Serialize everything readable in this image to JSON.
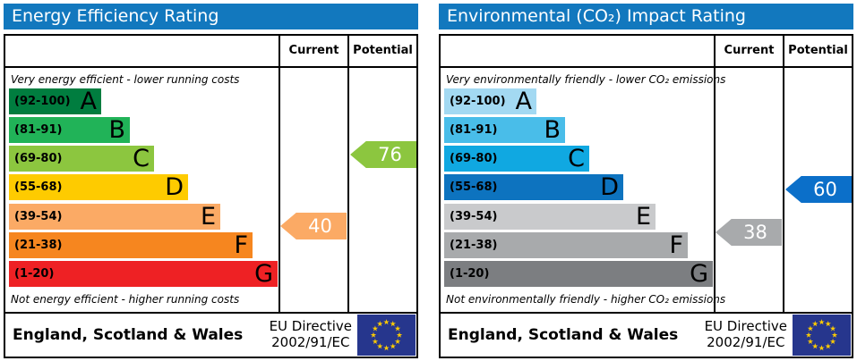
{
  "header_bg": "#1278be",
  "eu_flag": {
    "background": "#26368d",
    "star_color": "#ffcc00"
  },
  "panels": [
    {
      "id": "panel-energy",
      "title": "Energy Efficiency Rating",
      "columns": {
        "current": "Current",
        "potential": "Potential"
      },
      "top_note": "Very energy efficient - lower running costs",
      "bottom_note": "Not energy efficient - higher running costs",
      "bands": [
        {
          "letter": "A",
          "range": "(92-100)",
          "min": 92,
          "max": 100,
          "color": "#007d3f"
        },
        {
          "letter": "B",
          "range": "(81-91)",
          "min": 81,
          "max": 91,
          "color": "#21b358"
        },
        {
          "letter": "C",
          "range": "(69-80)",
          "min": 69,
          "max": 80,
          "color": "#8cc63f"
        },
        {
          "letter": "D",
          "range": "(55-68)",
          "min": 55,
          "max": 68,
          "color": "#fecb00"
        },
        {
          "letter": "E",
          "range": "(39-54)",
          "min": 39,
          "max": 54,
          "color": "#fbaa65"
        },
        {
          "letter": "F",
          "range": "(21-38)",
          "min": 21,
          "max": 38,
          "color": "#f6861f"
        },
        {
          "letter": "G",
          "range": "(1-20)",
          "min": 1,
          "max": 20,
          "color": "#ee2124"
        }
      ],
      "current": {
        "value": 40,
        "color": "#fbaa65"
      },
      "potential": {
        "value": 76,
        "color": "#8cc63f"
      },
      "footer": {
        "region": "England, Scotland & Wales",
        "directive_line1": "EU Directive",
        "directive_line2": "2002/91/EC"
      }
    },
    {
      "id": "panel-env",
      "title": "Environmental (CO₂) Impact Rating",
      "columns": {
        "current": "Current",
        "potential": "Potential"
      },
      "top_note": "Very environmentally friendly - lower CO₂ emissions",
      "bottom_note": "Not environmentally friendly - higher CO₂ emissions",
      "bands": [
        {
          "letter": "A",
          "range": "(92-100)",
          "min": 92,
          "max": 100,
          "color": "#a3d9f2"
        },
        {
          "letter": "B",
          "range": "(81-91)",
          "min": 81,
          "max": 91,
          "color": "#49bde9"
        },
        {
          "letter": "C",
          "range": "(69-80)",
          "min": 69,
          "max": 80,
          "color": "#10a8e1"
        },
        {
          "letter": "D",
          "range": "(55-68)",
          "min": 55,
          "max": 68,
          "color": "#0d73bf"
        },
        {
          "letter": "E",
          "range": "(39-54)",
          "min": 39,
          "max": 54,
          "color": "#c9cacc"
        },
        {
          "letter": "F",
          "range": "(21-38)",
          "min": 21,
          "max": 38,
          "color": "#a8aaac"
        },
        {
          "letter": "G",
          "range": "(1-20)",
          "min": 1,
          "max": 20,
          "color": "#7c7e81"
        }
      ],
      "current": {
        "value": 38,
        "color": "#a8aaac"
      },
      "potential": {
        "value": 60,
        "color": "#0b6fc9"
      },
      "footer": {
        "region": "England, Scotland & Wales",
        "directive_line1": "EU Directive",
        "directive_line2": "2002/91/EC"
      }
    }
  ],
  "chart_data": [
    {
      "type": "bar",
      "title": "Energy Efficiency Rating",
      "categories": [
        "A (92-100)",
        "B (81-91)",
        "C (69-80)",
        "D (55-68)",
        "E (39-54)",
        "F (21-38)",
        "G (1-20)"
      ],
      "scale_range": [
        1,
        100
      ],
      "current": 40,
      "current_band": "E",
      "potential": 76,
      "potential_band": "C",
      "top_note": "Very energy efficient - lower running costs",
      "bottom_note": "Not energy efficient - higher running costs",
      "footer": "England, Scotland & Wales — EU Directive 2002/91/EC"
    },
    {
      "type": "bar",
      "title": "Environmental (CO₂) Impact Rating",
      "categories": [
        "A (92-100)",
        "B (81-91)",
        "C (69-80)",
        "D (55-68)",
        "E (39-54)",
        "F (21-38)",
        "G (1-20)"
      ],
      "scale_range": [
        1,
        100
      ],
      "current": 38,
      "current_band": "F",
      "potential": 60,
      "potential_band": "D",
      "top_note": "Very environmentally friendly - lower CO₂ emissions",
      "bottom_note": "Not environmentally friendly - higher CO₂ emissions",
      "footer": "England, Scotland & Wales — EU Directive 2002/91/EC"
    }
  ]
}
